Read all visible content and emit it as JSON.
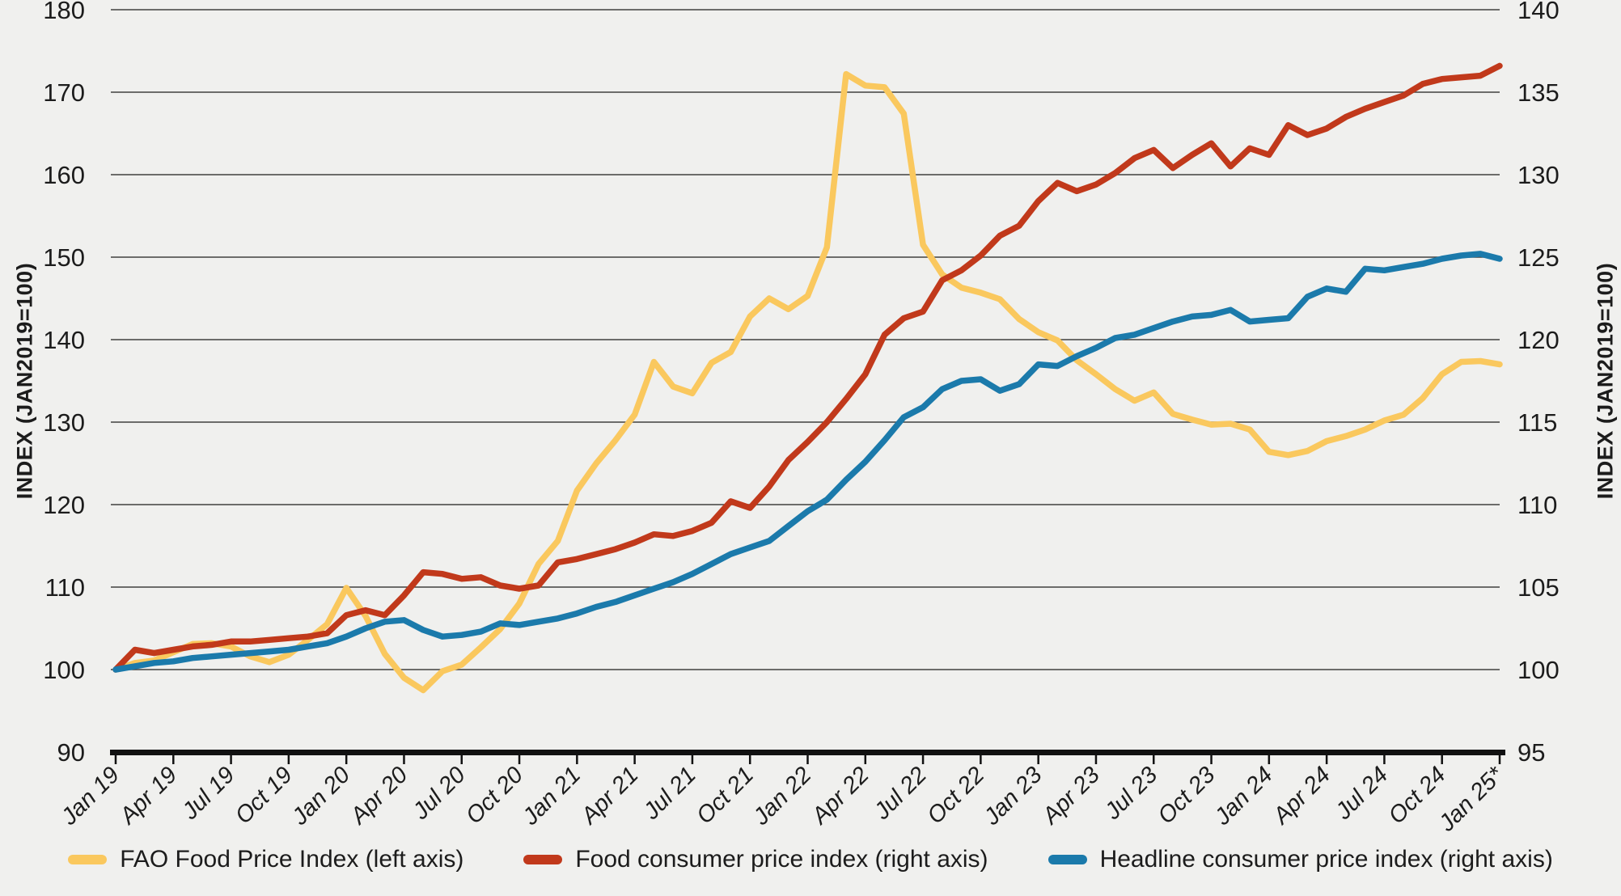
{
  "page": {
    "background": "#f0f0ee",
    "grid_color": "#41403e",
    "axis_color": "#111111",
    "text_color": "#1c1c1c"
  },
  "chart_data": {
    "type": "line",
    "title": "",
    "grid": "horizontal",
    "legend_position": "bottom-center",
    "left_axis": {
      "label": "INDEX (JAN2019=100)",
      "min": 90,
      "max": 180,
      "step": 10,
      "ticks": [
        "180",
        "170",
        "160",
        "150",
        "140",
        "130",
        "120",
        "110",
        "100",
        "90"
      ]
    },
    "right_axis": {
      "label": "INDEX (JAN2019=100)",
      "min": 95,
      "max": 140,
      "step": 5,
      "ticks": [
        "140",
        "135",
        "130",
        "125",
        "120",
        "115",
        "110",
        "105",
        "100",
        "95"
      ]
    },
    "x_axis": {
      "tick_labels": [
        "Jan 19",
        "Apr 19",
        "Jul 19",
        "Oct 19",
        "Jan 20",
        "Apr 20",
        "Jul 20",
        "Oct 20",
        "Jan 21",
        "Apr 21",
        "Jul 21",
        "Oct 21",
        "Jan 22",
        "Apr 22",
        "Jul 22",
        "Oct 22",
        "Jan 23",
        "Apr 23",
        "Jul 23",
        "Oct 23",
        "Jan 24",
        "Apr 24",
        "Jul 24",
        "Oct 24",
        "Jan 25*"
      ],
      "months_span": "Jan 2019 - Jan 2025, monthly"
    },
    "series": [
      {
        "name": "FAO Food Price Index (left axis)",
        "axis": "left",
        "color": "#fac85e",
        "values": [
          100.0,
          100.8,
          101.1,
          102.1,
          103.1,
          103.2,
          102.8,
          101.6,
          100.9,
          101.8,
          103.6,
          105.5,
          109.9,
          106.5,
          101.9,
          99.0,
          97.5,
          99.8,
          100.6,
          102.7,
          104.9,
          108.0,
          112.8,
          115.6,
          121.7,
          125.0,
          127.8,
          130.9,
          137.3,
          134.3,
          133.5,
          137.2,
          138.5,
          142.8,
          145.0,
          143.7,
          145.3,
          151.2,
          172.2,
          170.8,
          170.6,
          167.4,
          151.5,
          147.9,
          146.3,
          145.7,
          144.9,
          142.5,
          140.9,
          139.9,
          137.5,
          135.8,
          134.0,
          132.6,
          133.6,
          131.0,
          130.3,
          129.7,
          129.8,
          129.1,
          126.4,
          126.0,
          126.5,
          127.7,
          128.3,
          129.1,
          130.2,
          130.9,
          132.9,
          135.8,
          137.3,
          137.4,
          137.0
        ]
      },
      {
        "name": "Food consumer price index (right axis)",
        "axis": "right",
        "color": "#c1391b",
        "values": [
          100.0,
          101.2,
          101.0,
          101.2,
          101.4,
          101.5,
          101.7,
          101.7,
          101.8,
          101.9,
          102.0,
          102.2,
          103.3,
          103.6,
          103.3,
          104.5,
          105.9,
          105.8,
          105.5,
          105.6,
          105.1,
          104.9,
          105.1,
          106.5,
          106.7,
          107.0,
          107.3,
          107.7,
          108.2,
          108.1,
          108.4,
          108.9,
          110.2,
          109.8,
          111.1,
          112.7,
          113.8,
          115.0,
          116.4,
          117.9,
          120.3,
          121.3,
          121.7,
          123.6,
          124.2,
          125.1,
          126.3,
          126.9,
          128.4,
          129.5,
          129.0,
          129.4,
          130.1,
          131.0,
          131.5,
          130.4,
          131.2,
          131.9,
          130.5,
          131.6,
          131.2,
          133.0,
          132.4,
          132.8,
          133.5,
          134.0,
          134.4,
          134.8,
          135.5,
          135.8,
          135.9,
          136.0,
          136.6
        ]
      },
      {
        "name": "Headline consumer price index (right axis)",
        "axis": "right",
        "color": "#1b7aab",
        "values": [
          100.0,
          100.2,
          100.4,
          100.5,
          100.7,
          100.8,
          100.9,
          101.0,
          101.1,
          101.2,
          101.4,
          101.6,
          102.0,
          102.5,
          102.9,
          103.0,
          102.4,
          102.0,
          102.1,
          102.3,
          102.8,
          102.7,
          102.9,
          103.1,
          103.4,
          103.8,
          104.1,
          104.5,
          104.9,
          105.3,
          105.8,
          106.4,
          107.0,
          107.4,
          107.8,
          108.7,
          109.6,
          110.3,
          111.5,
          112.6,
          113.9,
          115.3,
          115.9,
          117.0,
          117.5,
          117.6,
          116.9,
          117.3,
          118.5,
          118.4,
          119.0,
          119.5,
          120.1,
          120.3,
          120.7,
          121.1,
          121.4,
          121.5,
          121.8,
          121.1,
          121.2,
          121.3,
          122.6,
          123.1,
          122.9,
          124.3,
          124.2,
          124.4,
          124.6,
          124.9,
          125.1,
          125.2,
          124.9
        ]
      }
    ]
  }
}
